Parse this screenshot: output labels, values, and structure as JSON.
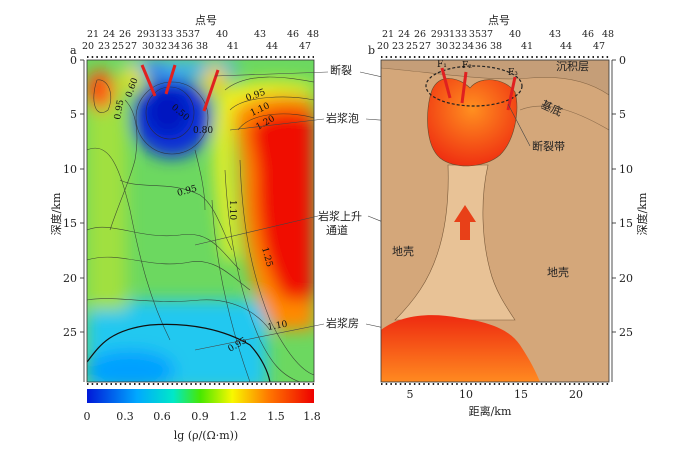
{
  "top_axis": {
    "title": "点号",
    "stations_row1": [
      "21",
      "24",
      "26",
      "293133",
      "3537",
      "40",
      "43",
      "46",
      "48"
    ],
    "stations_row2": [
      "20",
      "23",
      "25",
      "27",
      "30",
      "32",
      "34",
      "36",
      "38",
      "41",
      "44",
      "47"
    ]
  },
  "panel_a": {
    "letter": "a",
    "ylabel": "深度/km",
    "yticks": [
      "0",
      "5",
      "10",
      "15",
      "20",
      "25"
    ],
    "contour_labels": [
      "0.60",
      "0.50",
      "0.80",
      "0.95",
      "1.10",
      "1.20",
      "0.95",
      "1.10",
      "1.25",
      "1.10",
      "0.95",
      "0.95"
    ],
    "annotations": {
      "fault": "断裂",
      "bubble": "岩浆泡",
      "channel": "岩浆上升通道",
      "chamber": "岩浆房"
    }
  },
  "panel_b": {
    "letter": "b",
    "ylabel": "深度/km",
    "yticks": [
      "0",
      "5",
      "10",
      "15",
      "20",
      "25"
    ],
    "xticks": [
      "5",
      "10",
      "15",
      "20"
    ],
    "xlabel": "距离/km",
    "fault_labels": [
      "F₁",
      "F₂",
      "F₃"
    ],
    "labels": {
      "sediment": "沉积层",
      "basement": "基底",
      "fault_zone": "断裂带",
      "crust_left": "地壳",
      "crust_right": "地壳"
    }
  },
  "colorbar": {
    "ticks": [
      "0",
      "0.3",
      "0.6",
      "0.9",
      "1.2",
      "1.5",
      "1.8"
    ],
    "label": "lg (ρ/(Ω·m))",
    "colors": [
      "#0018d8",
      "#00a8ff",
      "#00e0c0",
      "#40e000",
      "#f8f800",
      "#ff7000",
      "#f00000"
    ]
  }
}
